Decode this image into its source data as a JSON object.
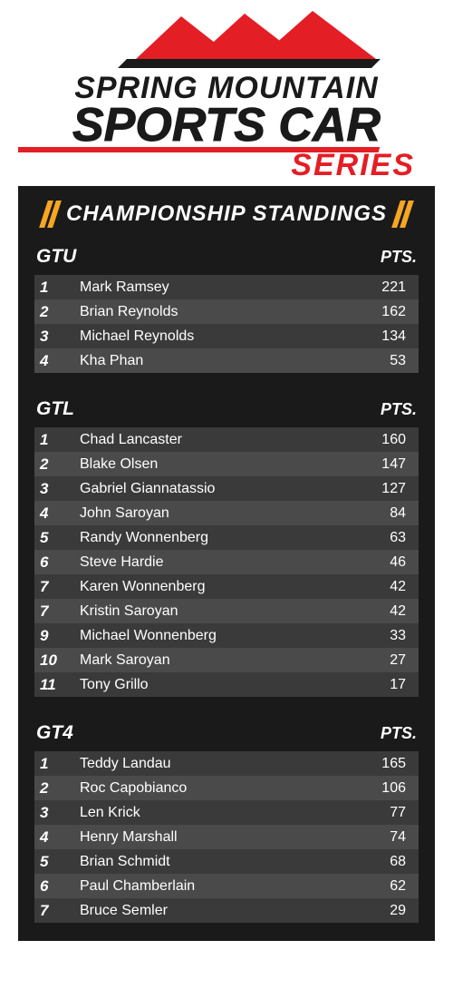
{
  "logo": {
    "line1": "SPRING MOUNTAIN",
    "line2": "SPORTS CAR",
    "line3": "SERIES",
    "flag_color": "#e31e24",
    "text_color": "#1a1a1a",
    "series_color": "#e31e24",
    "underline_color": "#e31e24"
  },
  "panel": {
    "title": "CHAMPIONSHIP STANDINGS",
    "background_color": "#1a1a1a",
    "accent_color": "#f5a623",
    "title_color": "#ffffff",
    "row_odd_color": "#3a3a3a",
    "row_even_color": "#4a4a4a",
    "text_color": "#ffffff",
    "pts_label": "PTS."
  },
  "sections": [
    {
      "class": "GTU",
      "rows": [
        {
          "pos": "1",
          "name": "Mark Ramsey",
          "pts": "221"
        },
        {
          "pos": "2",
          "name": "Brian Reynolds",
          "pts": "162"
        },
        {
          "pos": "3",
          "name": "Michael Reynolds",
          "pts": "134"
        },
        {
          "pos": "4",
          "name": "Kha Phan",
          "pts": "53"
        }
      ]
    },
    {
      "class": "GTL",
      "rows": [
        {
          "pos": "1",
          "name": "Chad Lancaster",
          "pts": "160"
        },
        {
          "pos": "2",
          "name": "Blake Olsen",
          "pts": "147"
        },
        {
          "pos": "3",
          "name": "Gabriel Giannatassio",
          "pts": "127"
        },
        {
          "pos": "4",
          "name": "John Saroyan",
          "pts": "84"
        },
        {
          "pos": "5",
          "name": "Randy Wonnenberg",
          "pts": "63"
        },
        {
          "pos": "6",
          "name": "Steve Hardie",
          "pts": "46"
        },
        {
          "pos": "7",
          "name": "Karen Wonnenberg",
          "pts": "42"
        },
        {
          "pos": "7",
          "name": "Kristin Saroyan",
          "pts": "42"
        },
        {
          "pos": "9",
          "name": "Michael Wonnenberg",
          "pts": "33"
        },
        {
          "pos": "10",
          "name": "Mark Saroyan",
          "pts": "27"
        },
        {
          "pos": "11",
          "name": "Tony Grillo",
          "pts": "17"
        }
      ]
    },
    {
      "class": "GT4",
      "rows": [
        {
          "pos": "1",
          "name": "Teddy Landau",
          "pts": "165"
        },
        {
          "pos": "2",
          "name": "Roc Capobianco",
          "pts": "106"
        },
        {
          "pos": "3",
          "name": "Len Krick",
          "pts": "77"
        },
        {
          "pos": "4",
          "name": "Henry Marshall",
          "pts": "74"
        },
        {
          "pos": "5",
          "name": "Brian Schmidt",
          "pts": "68"
        },
        {
          "pos": "6",
          "name": "Paul Chamberlain",
          "pts": "62"
        },
        {
          "pos": "7",
          "name": "Bruce Semler",
          "pts": "29"
        }
      ]
    }
  ]
}
